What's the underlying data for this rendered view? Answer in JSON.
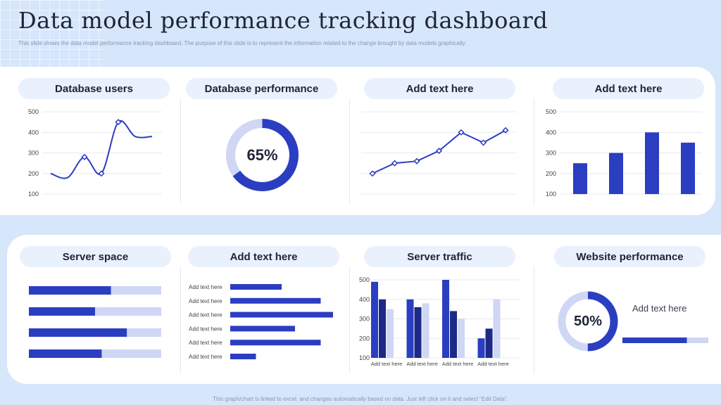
{
  "header": {
    "title": "Data model performance tracking dashboard",
    "subtitle": "This slide shows the data model performance tracking dashboard. The purpose of this slide is to represent the information related to the change brought by data models graphically."
  },
  "footer": "This graph/chart is linked to excel, and changes automatically based on data. Just left click on it and select \"Edit Data\".",
  "colors": {
    "primary": "#2b3ec1",
    "light": "#cfd7f5",
    "navy": "#1c2a85",
    "pill": "#e9f1fd",
    "background": "#d6e6fb"
  },
  "cards": {
    "database_users": "Database users",
    "database_performance": "Database performance",
    "add_text_1": "Add text here",
    "add_text_2": "Add text here",
    "server_space": "Server space",
    "add_text_3": "Add text here",
    "server_traffic": "Server traffic",
    "website_performance": "Website performance"
  },
  "website_note": "Add text here",
  "chart_data": [
    {
      "id": "database_users",
      "type": "line",
      "title": "Database users",
      "smooth": true,
      "y": [
        200,
        180,
        280,
        200,
        450,
        380,
        380
      ],
      "markers": [
        2,
        3,
        4
      ],
      "yticks": [
        100,
        200,
        300,
        400,
        500
      ],
      "ylim": [
        100,
        500
      ]
    },
    {
      "id": "database_performance",
      "type": "pie",
      "title": "Database performance",
      "label": "65%",
      "values": [
        65,
        35
      ]
    },
    {
      "id": "add_text_line",
      "type": "line",
      "title": "Add text here",
      "y": [
        200,
        250,
        260,
        310,
        400,
        350,
        410
      ],
      "markers": [
        0,
        1,
        2,
        3,
        4,
        5,
        6
      ],
      "ylim": [
        100,
        500
      ]
    },
    {
      "id": "add_text_bar",
      "type": "bar",
      "title": "Add text here",
      "values": [
        250,
        300,
        400,
        350
      ],
      "yticks": [
        100,
        200,
        300,
        400,
        500
      ],
      "ylim": [
        100,
        500
      ]
    },
    {
      "id": "server_space",
      "type": "bar",
      "title": "Server space",
      "orientation": "horizontal",
      "values": [
        62,
        50,
        74,
        55
      ]
    },
    {
      "id": "add_text_hbar",
      "type": "bar",
      "title": "Add text here",
      "orientation": "horizontal",
      "categories": [
        "Add text here",
        "Add text here",
        "Add text here",
        "Add text here",
        "Add text here",
        "Add text here"
      ],
      "values": [
        50,
        88,
        100,
        63,
        88,
        25
      ]
    },
    {
      "id": "server_traffic",
      "type": "bar",
      "title": "Server traffic",
      "categories": [
        "Add text here",
        "Add text here",
        "Add text here",
        "Add text here"
      ],
      "series": [
        {
          "values": [
            490,
            400,
            500,
            200
          ]
        },
        {
          "values": [
            400,
            360,
            340,
            250
          ]
        },
        {
          "values": [
            350,
            380,
            300,
            400
          ]
        }
      ],
      "yticks": [
        100,
        200,
        300,
        400,
        500
      ],
      "ylim": [
        100,
        500
      ]
    },
    {
      "id": "website_performance",
      "type": "pie",
      "title": "Website performance",
      "label": "50%",
      "values": [
        50,
        50
      ],
      "bar_value": 75
    }
  ]
}
